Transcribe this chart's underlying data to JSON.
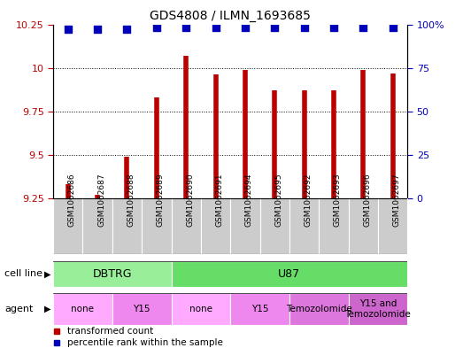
{
  "title": "GDS4808 / ILMN_1693685",
  "samples": [
    "GSM1062686",
    "GSM1062687",
    "GSM1062688",
    "GSM1062689",
    "GSM1062690",
    "GSM1062691",
    "GSM1062694",
    "GSM1062695",
    "GSM1062692",
    "GSM1062693",
    "GSM1062696",
    "GSM1062697"
  ],
  "bar_values": [
    9.33,
    9.27,
    9.49,
    9.83,
    10.07,
    9.96,
    9.99,
    9.87,
    9.87,
    9.87,
    9.99,
    9.97
  ],
  "percentile_values": [
    97,
    97,
    97,
    98,
    98,
    98,
    98,
    98,
    98,
    98,
    98,
    98
  ],
  "ylim_left": [
    9.25,
    10.25
  ],
  "ylim_right": [
    0,
    100
  ],
  "yticks_left": [
    9.25,
    9.5,
    9.75,
    10.0,
    10.25
  ],
  "ytick_labels_left": [
    "9.25",
    "9.5",
    "9.75",
    "10",
    "10.25"
  ],
  "yticks_right": [
    0,
    25,
    50,
    75,
    100
  ],
  "ytick_labels_right": [
    "0",
    "25",
    "50",
    "75",
    "100%"
  ],
  "bar_color": "#bb0000",
  "dot_color": "#0000bb",
  "cell_line_groups": [
    {
      "label": "DBTRG",
      "start": 0,
      "end": 3,
      "color": "#99ee99"
    },
    {
      "label": "U87",
      "start": 4,
      "end": 11,
      "color": "#66dd66"
    }
  ],
  "agent_groups": [
    {
      "label": "none",
      "start": 0,
      "end": 1,
      "color": "#ffaaff"
    },
    {
      "label": "Y15",
      "start": 2,
      "end": 3,
      "color": "#ee88ee"
    },
    {
      "label": "none",
      "start": 4,
      "end": 5,
      "color": "#ffaaff"
    },
    {
      "label": "Y15",
      "start": 6,
      "end": 7,
      "color": "#ee88ee"
    },
    {
      "label": "Temozolomide",
      "start": 8,
      "end": 9,
      "color": "#dd77dd"
    },
    {
      "label": "Y15 and\nTemozolomide",
      "start": 10,
      "end": 11,
      "color": "#cc66cc"
    }
  ],
  "legend_items": [
    {
      "label": "transformed count",
      "color": "#bb0000"
    },
    {
      "label": "percentile rank within the sample",
      "color": "#0000bb"
    }
  ],
  "bar_width": 0.35,
  "dot_size": 40,
  "label_row_color": "#cccccc",
  "plot_bg": "#ffffff"
}
